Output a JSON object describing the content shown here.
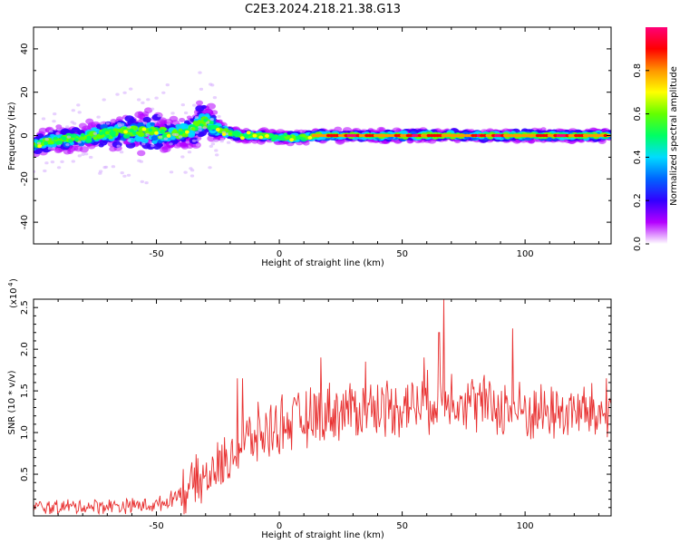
{
  "page_title": "C2E3.2024.218.21.38.G13",
  "chart_data": [
    {
      "type": "heatmap",
      "title": "C2E3.2024.218.21.38.G13",
      "xlabel": "Height of straight line (km)",
      "ylabel": "Frequency (Hz)",
      "xlim": [
        -100,
        135
      ],
      "ylim": [
        -50,
        50
      ],
      "x_ticks": [
        -50,
        0,
        50,
        100
      ],
      "y_ticks": [
        -40,
        -20,
        0,
        20,
        40
      ],
      "colorbar": {
        "label": "Normalized spectral amplitude",
        "range": [
          0.0,
          1.0
        ],
        "ticks": [
          "0.0",
          "0.2",
          "0.4",
          "0.6",
          "0.8"
        ],
        "colors": [
          "#ffffff",
          "#b400ff",
          "#3200ff",
          "#0064ff",
          "#00dcff",
          "#00ff64",
          "#64ff00",
          "#ffff00",
          "#ff9600",
          "#ff0000",
          "#ff0078"
        ]
      },
      "center_track": [
        [
          -100,
          -4
        ],
        [
          -90,
          -2
        ],
        [
          -80,
          -1
        ],
        [
          -70,
          1
        ],
        [
          -60,
          2
        ],
        [
          -50,
          1
        ],
        [
          -40,
          1
        ],
        [
          -35,
          3
        ],
        [
          -30,
          7
        ],
        [
          -25,
          3
        ],
        [
          -20,
          1
        ],
        [
          -15,
          0
        ],
        [
          -10,
          0
        ],
        [
          -5,
          0
        ],
        [
          0,
          -1
        ],
        [
          5,
          -1
        ],
        [
          10,
          -1
        ],
        [
          15,
          0
        ],
        [
          135,
          0
        ]
      ],
      "spread_hz": [
        [
          -100,
          6
        ],
        [
          -75,
          8
        ],
        [
          -60,
          10
        ],
        [
          -50,
          12
        ],
        [
          -40,
          8
        ],
        [
          -30,
          12
        ],
        [
          -25,
          6
        ],
        [
          -20,
          3
        ],
        [
          0,
          3
        ],
        [
          135,
          3
        ]
      ]
    },
    {
      "type": "line",
      "title": "",
      "xlabel": "Height of straight line (km)",
      "ylabel": "SNR (10 * v/v)",
      "y_multiplier": "(x10^4)",
      "xlim": [
        -100,
        135
      ],
      "ylim": [
        0,
        2.6
      ],
      "x_ticks": [
        -50,
        0,
        50,
        100
      ],
      "y_ticks": [
        0.5,
        1.0,
        1.5,
        2.0,
        2.5
      ],
      "color": "#e83030",
      "trend": [
        [
          -100,
          0.1
        ],
        [
          -70,
          0.12
        ],
        [
          -50,
          0.13
        ],
        [
          -45,
          0.18
        ],
        [
          -40,
          0.3
        ],
        [
          -30,
          0.45
        ],
        [
          -20,
          0.7
        ],
        [
          -15,
          0.85
        ],
        [
          -10,
          0.95
        ],
        [
          -5,
          1.0
        ],
        [
          0,
          1.1
        ],
        [
          10,
          1.15
        ],
        [
          20,
          1.25
        ],
        [
          40,
          1.3
        ],
        [
          60,
          1.35
        ],
        [
          70,
          1.45
        ],
        [
          80,
          1.35
        ],
        [
          100,
          1.25
        ],
        [
          120,
          1.25
        ],
        [
          135,
          1.2
        ]
      ],
      "peaks": [
        [
          -17,
          1.65
        ],
        [
          -15,
          1.65
        ],
        [
          17,
          1.9
        ],
        [
          35,
          1.85
        ],
        [
          59,
          1.9
        ],
        [
          65,
          2.2
        ],
        [
          67,
          2.6
        ],
        [
          95,
          2.25
        ],
        [
          124,
          1.55
        ],
        [
          133,
          1.65
        ]
      ]
    }
  ]
}
